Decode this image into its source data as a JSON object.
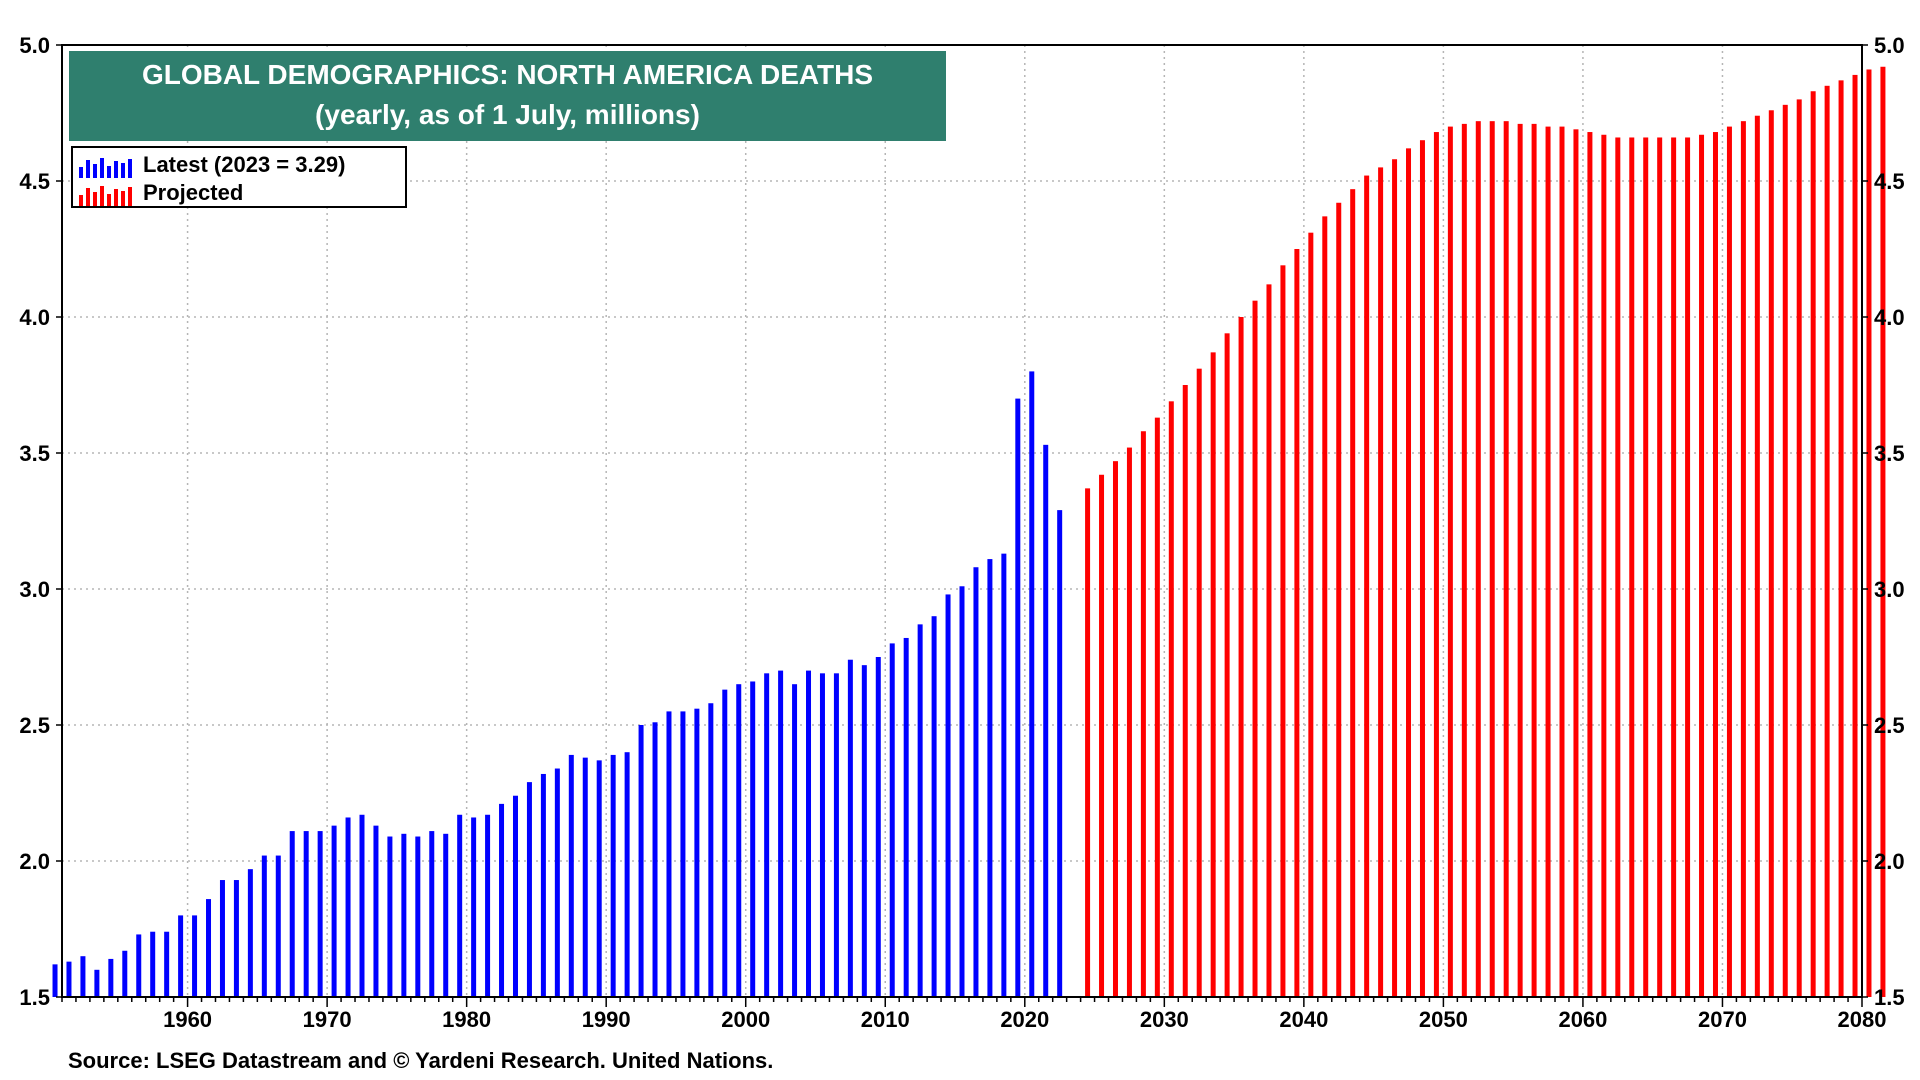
{
  "title": "GLOBAL DEMOGRAPHICS: NORTH AMERICA DEATHS",
  "subtitle": "(yearly, as of 1 July, millions)",
  "source": "Source: LSEG Datastream and © Yardeni Research. United Nations.",
  "legend": [
    {
      "label": "Latest (2023 = 3.29)",
      "color": "#0000ff"
    },
    {
      "label": "Projected",
      "color": "#ff0000"
    }
  ],
  "chart_data": {
    "type": "bar",
    "title": "GLOBAL DEMOGRAPHICS: NORTH AMERICA DEATHS",
    "subtitle": "(yearly, as of 1 July, millions)",
    "xlim": [
      1951,
      2080
    ],
    "ylim": [
      1.5,
      5.0
    ],
    "x_ticks": [
      1960,
      1970,
      1980,
      1990,
      2000,
      2010,
      2020,
      2030,
      2040,
      2050,
      2060,
      2070,
      2080
    ],
    "y_ticks": [
      "1.5",
      "2.0",
      "2.5",
      "3.0",
      "3.5",
      "4.0",
      "4.5",
      "5.0"
    ],
    "grid": true,
    "series": [
      {
        "name": "Latest (2023 = 3.29)",
        "color": "#0000ff",
        "start_year": 1950,
        "values": [
          1.62,
          1.63,
          1.65,
          1.6,
          1.64,
          1.67,
          1.73,
          1.74,
          1.74,
          1.8,
          1.8,
          1.86,
          1.93,
          1.93,
          1.97,
          2.02,
          2.02,
          2.11,
          2.11,
          2.11,
          2.13,
          2.16,
          2.17,
          2.13,
          2.09,
          2.1,
          2.09,
          2.11,
          2.1,
          2.17,
          2.16,
          2.17,
          2.21,
          2.24,
          2.29,
          2.32,
          2.34,
          2.39,
          2.38,
          2.37,
          2.39,
          2.4,
          2.5,
          2.51,
          2.55,
          2.55,
          2.56,
          2.58,
          2.63,
          2.65,
          2.66,
          2.69,
          2.7,
          2.65,
          2.7,
          2.69,
          2.69,
          2.74,
          2.72,
          2.75,
          2.8,
          2.82,
          2.87,
          2.9,
          2.98,
          3.01,
          3.08,
          3.11,
          3.13,
          3.7,
          3.8,
          3.53,
          3.29
        ]
      },
      {
        "name": "Projected",
        "color": "#ff0000",
        "start_year": 2024,
        "values": [
          3.37,
          3.42,
          3.47,
          3.52,
          3.58,
          3.63,
          3.69,
          3.75,
          3.81,
          3.87,
          3.94,
          4.0,
          4.06,
          4.12,
          4.19,
          4.25,
          4.31,
          4.37,
          4.42,
          4.47,
          4.52,
          4.55,
          4.58,
          4.62,
          4.65,
          4.68,
          4.7,
          4.71,
          4.72,
          4.72,
          4.72,
          4.71,
          4.71,
          4.7,
          4.7,
          4.69,
          4.68,
          4.67,
          4.66,
          4.66,
          4.66,
          4.66,
          4.66,
          4.66,
          4.67,
          4.68,
          4.7,
          4.72,
          4.74,
          4.76,
          4.78,
          4.8,
          4.83,
          4.85,
          4.87,
          4.89,
          4.91,
          4.92
        ]
      }
    ]
  }
}
